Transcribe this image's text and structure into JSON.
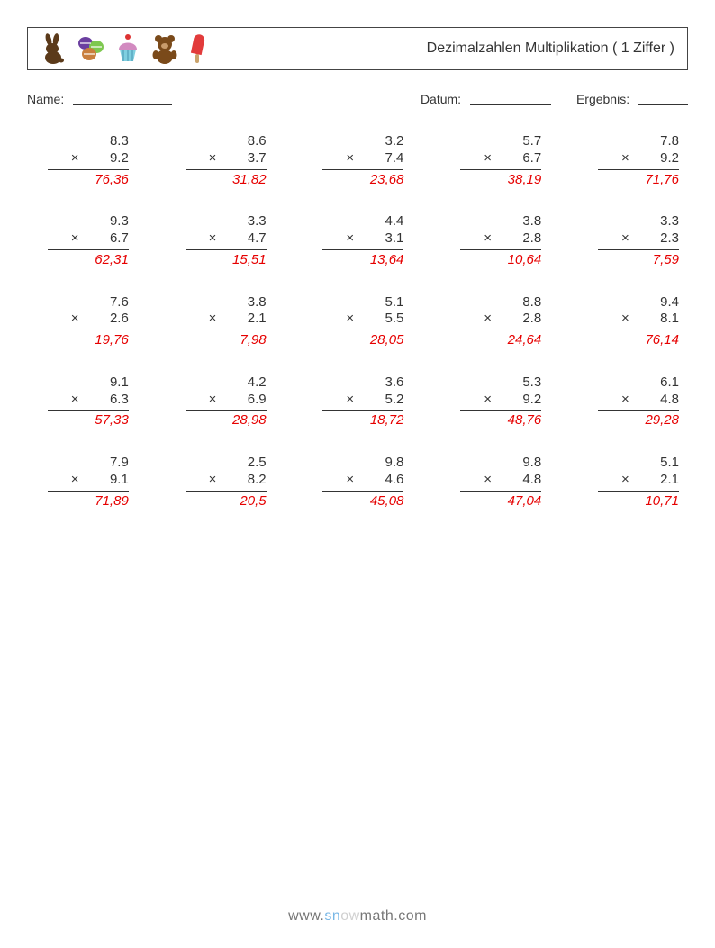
{
  "header": {
    "title": "Dezimalzahlen Multiplikation ( 1 Ziffer )",
    "icons": [
      "bunny",
      "macarons",
      "cupcake",
      "teddy",
      "popsicle"
    ],
    "icon_colors": {
      "bunny": "#5b3a1a",
      "mac_top": "#6b3fa0",
      "mac_mid": "#7ec850",
      "mac_bot": "#c97f3d",
      "cupcake_top": "#d28ac0",
      "cupcake_base": "#7fcfe0",
      "cupcake_cherry": "#d33",
      "teddy": "#7a4a1a",
      "pop_body": "#e23b3b",
      "pop_stick": "#caa36b"
    }
  },
  "labels": {
    "name": "Name:",
    "date": "Datum:",
    "result": "Ergebnis:",
    "name_blank_w": 110,
    "date_blank_w": 90,
    "result_blank_w": 55
  },
  "style": {
    "text_color": "#343434",
    "answer_color": "#e60000",
    "font_size_body": 15,
    "font_size_title": 16,
    "font_size_labels": 14,
    "cols": 5,
    "rows": 5
  },
  "problems": [
    {
      "a": "8.3",
      "b": "9.2",
      "ans": "76,36"
    },
    {
      "a": "8.6",
      "b": "3.7",
      "ans": "31,82"
    },
    {
      "a": "3.2",
      "b": "7.4",
      "ans": "23,68"
    },
    {
      "a": "5.7",
      "b": "6.7",
      "ans": "38,19"
    },
    {
      "a": "7.8",
      "b": "9.2",
      "ans": "71,76"
    },
    {
      "a": "9.3",
      "b": "6.7",
      "ans": "62,31"
    },
    {
      "a": "3.3",
      "b": "4.7",
      "ans": "15,51"
    },
    {
      "a": "4.4",
      "b": "3.1",
      "ans": "13,64"
    },
    {
      "a": "3.8",
      "b": "2.8",
      "ans": "10,64"
    },
    {
      "a": "3.3",
      "b": "2.3",
      "ans": "7,59"
    },
    {
      "a": "7.6",
      "b": "2.6",
      "ans": "19,76"
    },
    {
      "a": "3.8",
      "b": "2.1",
      "ans": "7,98"
    },
    {
      "a": "5.1",
      "b": "5.5",
      "ans": "28,05"
    },
    {
      "a": "8.8",
      "b": "2.8",
      "ans": "24,64"
    },
    {
      "a": "9.4",
      "b": "8.1",
      "ans": "76,14"
    },
    {
      "a": "9.1",
      "b": "6.3",
      "ans": "57,33"
    },
    {
      "a": "4.2",
      "b": "6.9",
      "ans": "28,98"
    },
    {
      "a": "3.6",
      "b": "5.2",
      "ans": "18,72"
    },
    {
      "a": "5.3",
      "b": "9.2",
      "ans": "48,76"
    },
    {
      "a": "6.1",
      "b": "4.8",
      "ans": "29,28"
    },
    {
      "a": "7.9",
      "b": "9.1",
      "ans": "71,89"
    },
    {
      "a": "2.5",
      "b": "8.2",
      "ans": "20,5"
    },
    {
      "a": "9.8",
      "b": "4.6",
      "ans": "45,08"
    },
    {
      "a": "9.8",
      "b": "4.8",
      "ans": "47,04"
    },
    {
      "a": "5.1",
      "b": "2.1",
      "ans": "10,71"
    }
  ],
  "footer": {
    "prefix": "www.",
    "sn": "sn",
    "ow": "ow",
    "suffix": "math.com"
  }
}
